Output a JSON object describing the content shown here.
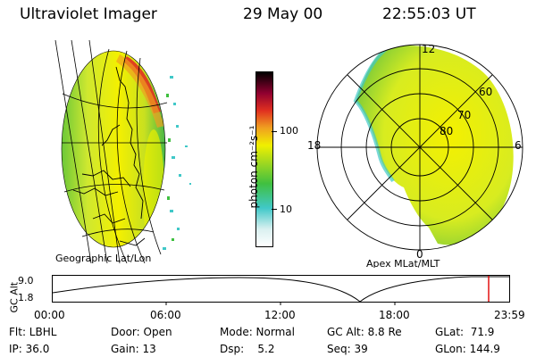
{
  "header": {
    "instrument": "Ultraviolet Imager",
    "date": "29 May 00",
    "time": "22:55:03 UT"
  },
  "geo_panel": {
    "caption": "Geographic Lat/Lon"
  },
  "polar_panel": {
    "caption": "Apex MLat/MLT",
    "mlt_labels": {
      "top": "12",
      "left": "18",
      "right": "6",
      "bottom": "0"
    },
    "lat_labels": [
      "60",
      "70",
      "80"
    ]
  },
  "colorbar": {
    "unit_label": "photon cm⁻²s⁻¹",
    "ticks": [
      "100",
      "10"
    ],
    "scale": "log",
    "colors": [
      "#ffffff",
      "#d9f0f0",
      "#40c8c8",
      "#40c040",
      "#a0d820",
      "#f0f000",
      "#f0a020",
      "#e03020",
      "#900030",
      "#000000"
    ]
  },
  "altitude_plot": {
    "ylabel": "GC Alt",
    "yticks": [
      "9.0",
      "1.8"
    ],
    "xticks": [
      "00:00",
      "06:00",
      "12:00",
      "18:00",
      "23:59"
    ],
    "current_marker_color": "#e00000"
  },
  "info": {
    "row1": {
      "filter": "Flt: LBHL",
      "door": "Door: Open",
      "mode": "Mode: Normal",
      "gc_alt": "GC Alt: 8.8 Re",
      "glat": "GLat:  71.9"
    },
    "row2": {
      "ip": "IP: 36.0",
      "gain": "Gain: 13",
      "dsp": "Dsp:    5.2",
      "seq": "Seq: 39",
      "glon": "GLon: 144.9"
    }
  }
}
